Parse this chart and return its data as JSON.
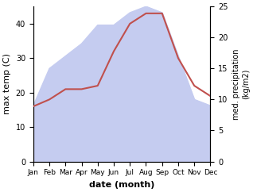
{
  "months": [
    "Jan",
    "Feb",
    "Mar",
    "Apr",
    "May",
    "Jun",
    "Jul",
    "Aug",
    "Sep",
    "Oct",
    "Nov",
    "Dec"
  ],
  "month_indices": [
    1,
    2,
    3,
    4,
    5,
    6,
    7,
    8,
    9,
    10,
    11,
    12
  ],
  "temp": [
    16,
    18,
    21,
    21,
    22,
    32,
    40,
    43,
    43,
    30,
    22,
    19
  ],
  "precip": [
    9,
    15,
    17,
    19,
    22,
    22,
    24,
    25,
    24,
    17,
    10,
    9
  ],
  "temp_color": "#c0504d",
  "precip_fill_color": "#c5ccf0",
  "precip_line_color": "#aab4e8",
  "temp_ylim": [
    0,
    45
  ],
  "precip_ylim": [
    0,
    25
  ],
  "temp_yticks": [
    0,
    10,
    20,
    30,
    40
  ],
  "precip_yticks": [
    0,
    5,
    10,
    15,
    20,
    25
  ],
  "xlabel": "date (month)",
  "ylabel_left": "max temp (C)",
  "ylabel_right": "med. precipitation\n(kg/m2)",
  "fig_width": 3.18,
  "fig_height": 2.42,
  "dpi": 100
}
